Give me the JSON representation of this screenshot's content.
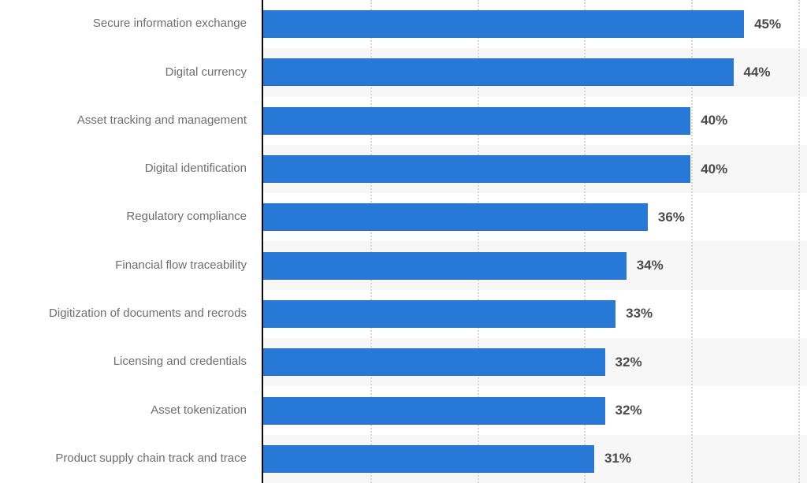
{
  "chart_data": {
    "type": "bar",
    "orientation": "horizontal",
    "title": "",
    "xlabel": "",
    "ylabel": "",
    "categories": [
      "Secure information exchange",
      "Digital currency",
      "Asset tracking and management",
      "Digital identification",
      "Regulatory compliance",
      "Financial flow traceability",
      "Digitization of documents and recrods",
      "Licensing and credentials",
      "Asset tokenization",
      "Product supply chain track and trace"
    ],
    "values": [
      45,
      44,
      40,
      40,
      36,
      34,
      33,
      32,
      32,
      31
    ],
    "value_labels": [
      "45%",
      "44%",
      "40%",
      "40%",
      "36%",
      "34%",
      "33%",
      "32%",
      "32%",
      "31%"
    ],
    "xlim": [
      0,
      50.8
    ],
    "gridlines_percent": [
      10,
      20,
      30,
      40,
      50
    ],
    "grid_style": "vertical-dotted",
    "legend": "none",
    "row_striping": "alternate rows shaded in plot area only",
    "colors": {
      "bar": "#2878d8",
      "stripe": "#f7f7f7",
      "category_label": "#6e6e6e",
      "value_label": "#4a4a4a",
      "axis": "#0a0a0a",
      "gridline": "#d6d6d6"
    }
  }
}
